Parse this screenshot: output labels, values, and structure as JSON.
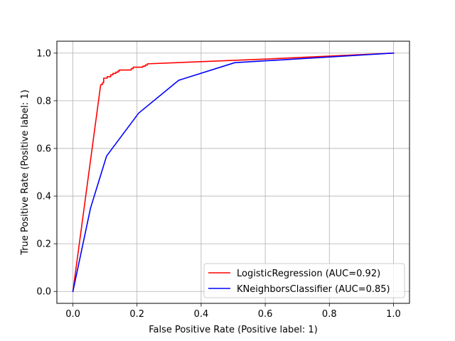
{
  "chart_data": {
    "type": "line",
    "title": "",
    "xlabel": "False Positive Rate (Positive label: 1)",
    "ylabel": "True Positive Rate (Positive label: 1)",
    "xlim": [
      -0.05,
      1.05
    ],
    "ylim": [
      -0.05,
      1.05
    ],
    "xticks": [
      0.0,
      0.2,
      0.4,
      0.6,
      0.8,
      1.0
    ],
    "yticks": [
      0.0,
      0.2,
      0.4,
      0.6,
      0.8,
      1.0
    ],
    "xtick_labels": [
      "0.0",
      "0.2",
      "0.4",
      "0.6",
      "0.8",
      "1.0"
    ],
    "ytick_labels": [
      "0.0",
      "0.2",
      "0.4",
      "0.6",
      "0.8",
      "1.0"
    ],
    "grid": true,
    "legend_position": "lower-right",
    "series": [
      {
        "name": "LogisticRegression (AUC=0.92)",
        "color": "#ff0000",
        "x": [
          0.0,
          0.086,
          0.088,
          0.093,
          0.093,
          0.096,
          0.096,
          0.107,
          0.107,
          0.118,
          0.118,
          0.125,
          0.125,
          0.134,
          0.134,
          0.141,
          0.141,
          0.145,
          0.145,
          0.182,
          0.182,
          0.188,
          0.188,
          0.218,
          0.218,
          0.226,
          0.226,
          0.232,
          0.232,
          0.6,
          1.0
        ],
        "y": [
          0.0,
          0.861,
          0.869,
          0.869,
          0.877,
          0.877,
          0.895,
          0.895,
          0.901,
          0.901,
          0.909,
          0.909,
          0.915,
          0.915,
          0.92,
          0.92,
          0.925,
          0.925,
          0.929,
          0.929,
          0.935,
          0.935,
          0.941,
          0.941,
          0.945,
          0.945,
          0.95,
          0.95,
          0.955,
          0.975,
          1.0
        ]
      },
      {
        "name": "KNeighborsClassifier (AUC=0.85)",
        "color": "#0000ff",
        "x": [
          0.0,
          0.055,
          0.105,
          0.205,
          0.33,
          0.505,
          1.0
        ],
        "y": [
          0.0,
          0.35,
          0.568,
          0.748,
          0.886,
          0.96,
          1.0
        ]
      }
    ]
  }
}
